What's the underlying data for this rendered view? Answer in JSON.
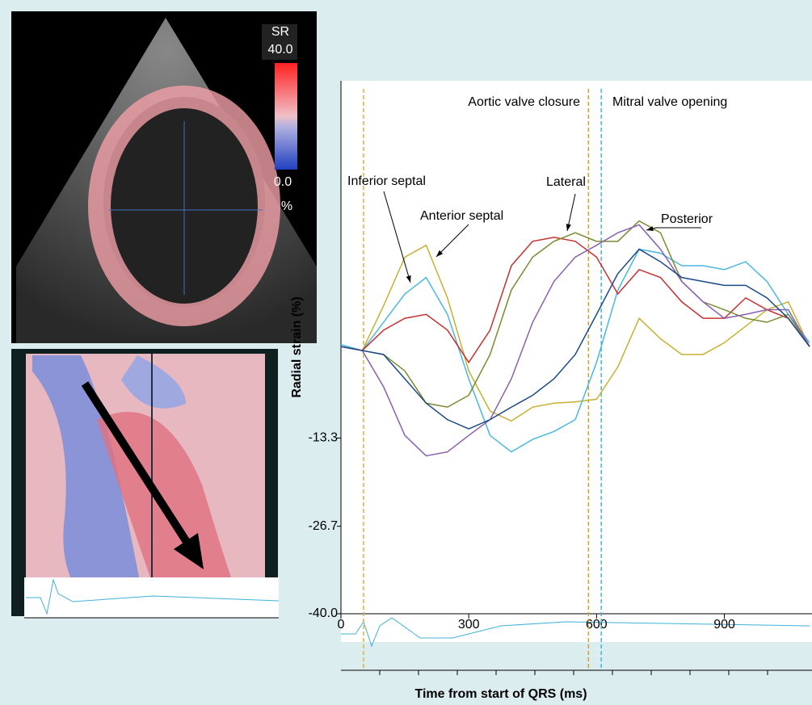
{
  "image_labels": {
    "unit_top": "SR",
    "scale_max": "40.0",
    "scale_min": "0.0",
    "scale_unit": "%"
  },
  "chart_data": {
    "type": "line",
    "x_label": "Time from start of QRS (ms)",
    "y_label": "Radial strain (%)",
    "x": [
      0,
      50,
      100,
      150,
      200,
      250,
      300,
      350,
      400,
      450,
      500,
      550,
      600,
      650,
      700,
      750,
      800,
      850,
      900,
      950,
      1000,
      1050,
      1100
    ],
    "series": [
      {
        "color": "#c8b030",
        "values": [
          0.6,
          0,
          6.8,
          14.2,
          16.0,
          8.0,
          -3.1,
          -9.2,
          -10.7,
          -8.6,
          -8.0,
          -7.8,
          -7.4,
          -2.5,
          4.9,
          1.8,
          -0.6,
          -0.6,
          1.2,
          3.7,
          6.2,
          7.4,
          0.6
        ]
      },
      {
        "color": "#4ab8e0",
        "values": [
          0.9,
          0,
          4.3,
          8.6,
          11.1,
          5.5,
          -4.3,
          -12.9,
          -15.4,
          -13.5,
          -12.3,
          -10.5,
          -1.8,
          9.2,
          15.4,
          14.8,
          12.9,
          12.9,
          12.3,
          13.5,
          10.5,
          5.5,
          1.2
        ]
      },
      {
        "color": "#c83030",
        "values": [
          0.6,
          0,
          3.1,
          4.9,
          5.5,
          3.1,
          -1.8,
          3.1,
          12.9,
          16.6,
          17.2,
          16.6,
          14.2,
          8.6,
          12.3,
          11.1,
          7.4,
          4.9,
          4.9,
          8.0,
          6.2,
          4.9,
          0.6
        ]
      },
      {
        "color": "#7a8a30",
        "values": [
          0.6,
          0,
          -0.6,
          -3.1,
          -8.0,
          -8.6,
          -6.8,
          -0.6,
          9.2,
          14.2,
          16.6,
          17.9,
          16.6,
          16.6,
          19.7,
          17.9,
          10.5,
          7.4,
          6.2,
          4.9,
          4.3,
          5.5,
          0.6
        ]
      },
      {
        "color": "#8a60b0",
        "values": [
          0.6,
          0,
          -5.5,
          -12.9,
          -16.0,
          -15.4,
          -12.9,
          -10.5,
          -4.3,
          4.3,
          10.5,
          14.2,
          16.0,
          17.9,
          19.1,
          15.4,
          10.5,
          7.4,
          4.9,
          5.5,
          6.2,
          6.2,
          0.6
        ]
      },
      {
        "color": "#1a4a8a",
        "values": [
          0.6,
          0,
          -0.6,
          -4.3,
          -8.0,
          -10.5,
          -11.9,
          -10.5,
          -8.6,
          -6.8,
          -4.3,
          -0.6,
          5.5,
          11.7,
          15.4,
          13.5,
          11.1,
          10.5,
          9.9,
          9.9,
          8.0,
          4.9,
          0.6
        ]
      }
    ],
    "events": [
      {
        "x": 53,
        "color": "#e0b040"
      },
      {
        "x": 581,
        "color": "#d0a030"
      },
      {
        "x": 611,
        "color": "#40b8e0"
      }
    ],
    "annotations": [
      "Aortic valve closure",
      "Mitral valve opening",
      "Inferior septal",
      "Anterior septal",
      "Lateral",
      "Posterior"
    ],
    "xlim": [
      0,
      1100
    ],
    "ylim": [
      -40,
      41
    ],
    "xticks": [
      0,
      300,
      600,
      900
    ],
    "yticks": [
      {
        "value": -40,
        "label": "-40.0"
      },
      -26.7,
      -13.3
    ]
  }
}
